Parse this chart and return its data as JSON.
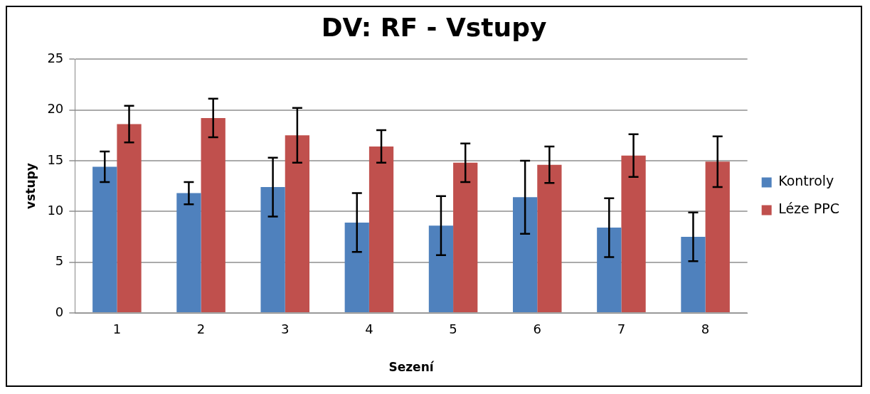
{
  "chart_data": {
    "type": "bar",
    "title": "DV: RF - Vstupy",
    "xlabel": "Sezení",
    "ylabel": "vstupy",
    "categories": [
      "1",
      "2",
      "3",
      "4",
      "5",
      "6",
      "7",
      "8"
    ],
    "series": [
      {
        "name": "Kontroly",
        "color": "#4f81bd",
        "values": [
          14.4,
          11.8,
          12.4,
          8.9,
          8.6,
          11.4,
          8.4,
          7.5
        ],
        "errors": [
          1.5,
          1.1,
          2.9,
          2.9,
          2.9,
          3.6,
          2.9,
          2.4
        ]
      },
      {
        "name": "Léze PPC",
        "color": "#c0504d",
        "values": [
          18.6,
          19.2,
          17.5,
          16.4,
          14.8,
          14.6,
          15.5,
          14.9
        ],
        "errors": [
          1.8,
          1.9,
          2.7,
          1.6,
          1.9,
          1.8,
          2.1,
          2.5
        ]
      }
    ],
    "ylim": [
      0,
      25
    ],
    "yticks": [
      0,
      5,
      10,
      15,
      20,
      25
    ],
    "grid": "y",
    "legend": "right"
  }
}
